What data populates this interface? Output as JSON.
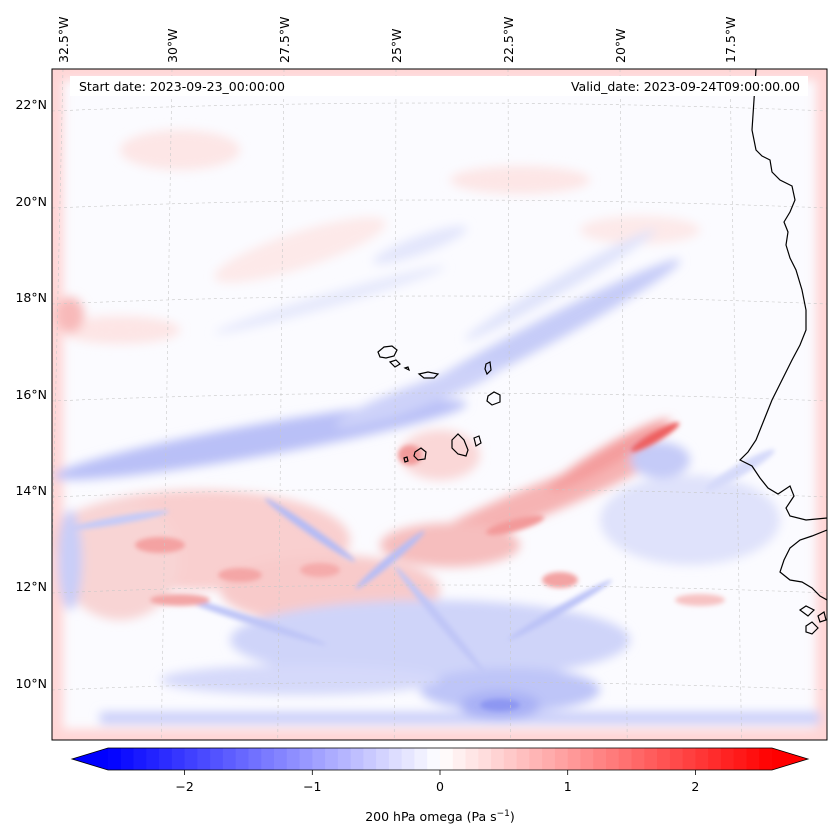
{
  "header": {
    "start_date": "Start date: 2023-09-23_00:00:00",
    "valid_date": "Valid_date: 2023-09-24T09:00:00.00"
  },
  "longitude_labels": [
    "32.5°W",
    "30°W",
    "27.5°W",
    "25°W",
    "22.5°W",
    "20°W",
    "17.5°W"
  ],
  "latitude_labels": [
    "22°N",
    "20°N",
    "18°N",
    "16°N",
    "14°N",
    "12°N",
    "10°N"
  ],
  "colorbar": {
    "ticks": [
      -2,
      -1,
      0,
      1,
      2
    ],
    "tick_labels": [
      "−2",
      "−1",
      "0",
      "1",
      "2"
    ],
    "range": [
      -2.6,
      2.6
    ],
    "label_prefix": "200 hPa omega (Pa s",
    "label_sup": "−1",
    "label_suffix": ")",
    "colormap": "bwr",
    "extend": "both"
  },
  "colors": {
    "negative": "#0000ff",
    "neutral": "#ffffff",
    "positive": "#ff0000",
    "coastline": "#000000",
    "grid": "#c8c8c8"
  },
  "map": {
    "projection": "conic",
    "lon_range": [
      -33.0,
      -15.0
    ],
    "lat_range": [
      9.0,
      22.5
    ],
    "gridlines": true,
    "field": "200 hPa vertical velocity (omega)"
  }
}
